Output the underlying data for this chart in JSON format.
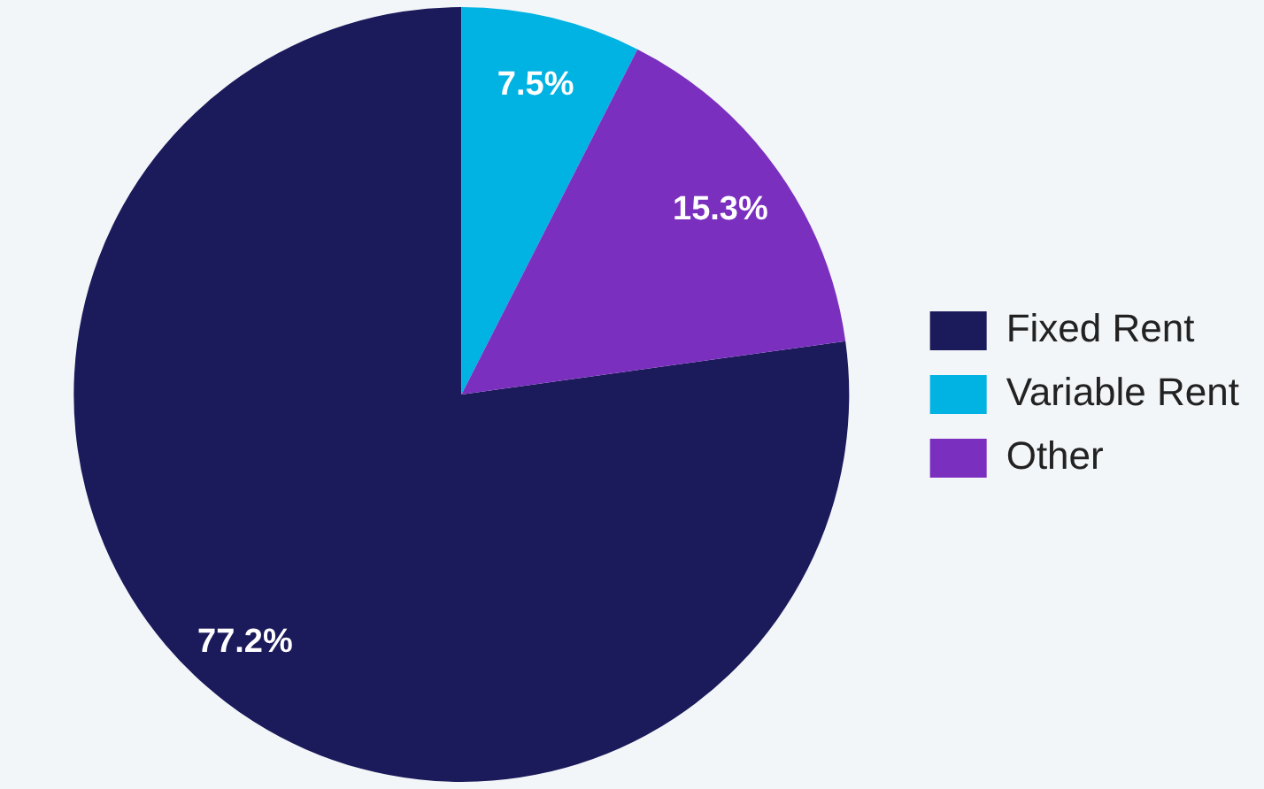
{
  "chart_data": {
    "type": "pie",
    "categories": [
      "Fixed Rent",
      "Variable Rent",
      "Other"
    ],
    "values": [
      77.2,
      7.5,
      15.3
    ],
    "colors": [
      "#1b1a5a",
      "#00b3e3",
      "#7a2fbe"
    ],
    "value_labels": [
      "77.2%",
      "7.5%",
      "15.3%"
    ],
    "legend": "right"
  }
}
